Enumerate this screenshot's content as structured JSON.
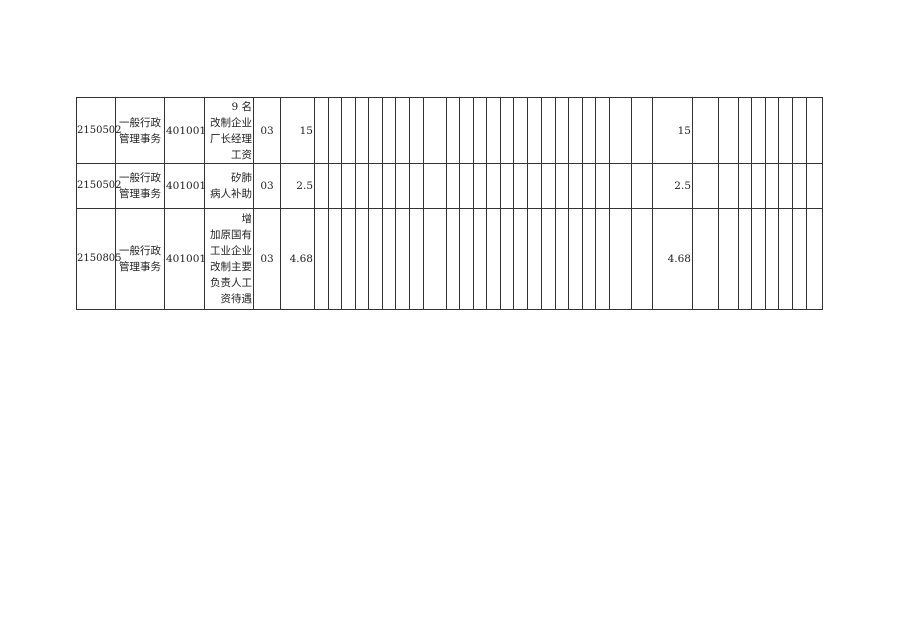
{
  "table": {
    "rows": [
      {
        "code": "2150502",
        "category": "一般行政\n管理事务",
        "unit": "401001",
        "item": "9 名\n改制企业\n厂长经理\n工资",
        "type": "03",
        "amount": "15",
        "total": "15"
      },
      {
        "code": "2150502",
        "category": "一般行政\n管理事务",
        "unit": "401001",
        "item": "矽肺\n病人补助",
        "type": "03",
        "amount": "2.5",
        "total": "2.5"
      },
      {
        "code": "2150805",
        "category": "一般行政\n管理事务",
        "unit": "401001",
        "item": "增\n加原国有\n工业企业\n改制主要\n负责人工\n资待遇",
        "type": "03",
        "amount": "4.68",
        "total": "4.68"
      }
    ]
  }
}
